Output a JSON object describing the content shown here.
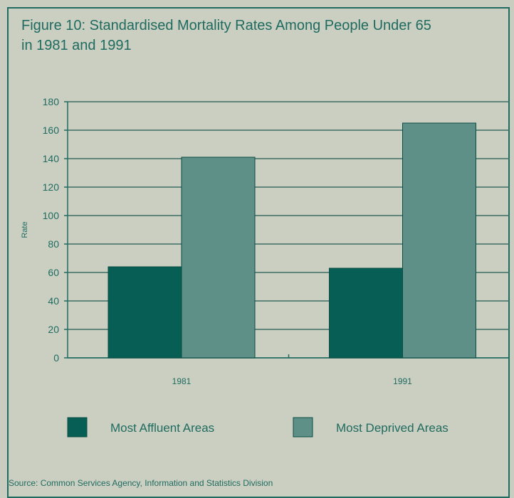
{
  "title_line1": "Figure 10: Standardised Mortality Rates Among People Under 65",
  "title_line2": "in 1981 and 1991",
  "source": "Source: Common Services Agency, Information and Statistics Division",
  "colors": {
    "affluent": "#075e55",
    "deprived": "#5f9088",
    "axis": "#1f6b60",
    "grid": "#3e6f66"
  },
  "chart_data": {
    "type": "bar",
    "title": "Figure 10: Standardised Mortality Rates Among People Under 65 in 1981 and 1991",
    "xlabel": "",
    "ylabel": "Rate",
    "ylim": [
      0,
      180
    ],
    "yticks": [
      0,
      20,
      40,
      60,
      80,
      100,
      120,
      140,
      160,
      180
    ],
    "categories": [
      "1981",
      "1991"
    ],
    "series": [
      {
        "name": "Most Affluent Areas",
        "values": [
          64,
          63
        ]
      },
      {
        "name": "Most Deprived Areas",
        "values": [
          141,
          165
        ]
      }
    ],
    "grid": true,
    "legend": "bottom"
  }
}
